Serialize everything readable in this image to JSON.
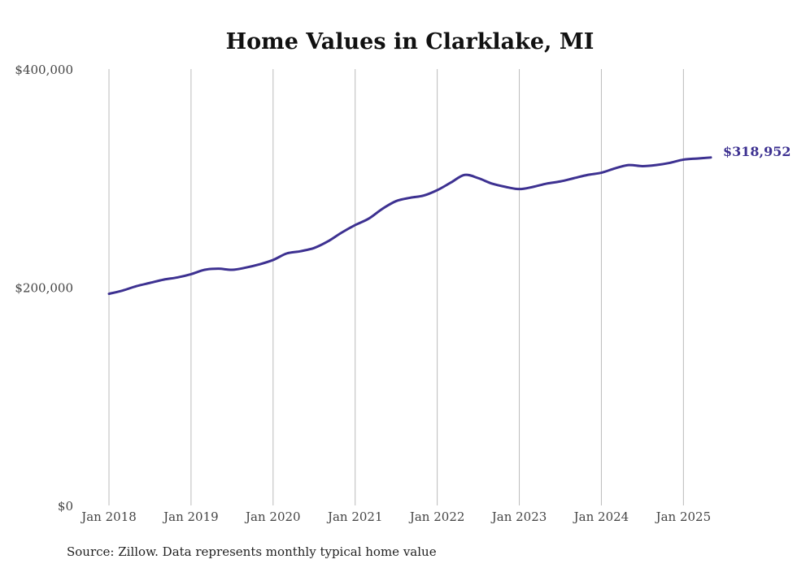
{
  "chart_data": {
    "type": "line",
    "title": "Home Values in Clarklake, MI",
    "xlabel": "",
    "ylabel": "",
    "y_tick_labels": [
      "$400,000",
      "$200,000",
      "$0"
    ],
    "y_tick_values": [
      400000,
      200000,
      0
    ],
    "ylim": [
      0,
      400000
    ],
    "x_tick_labels": [
      "Jan 2018",
      "Jan 2019",
      "Jan 2020",
      "Jan 2021",
      "Jan 2022",
      "Jan 2023",
      "Jan 2024",
      "Jan 2025"
    ],
    "x_tick_values": [
      "2018-01",
      "2019-01",
      "2020-01",
      "2021-01",
      "2022-01",
      "2023-01",
      "2024-01",
      "2025-01"
    ],
    "xlim": [
      "2018-01",
      "2025-05"
    ],
    "grid": "vertical",
    "line_color": "#3d3191",
    "end_label": "$318,952",
    "series": [
      {
        "x": [
          "2018-01",
          "2018-03",
          "2018-05",
          "2018-07",
          "2018-09",
          "2018-11",
          "2019-01",
          "2019-03",
          "2019-05",
          "2019-07",
          "2019-09",
          "2019-11",
          "2020-01",
          "2020-03",
          "2020-05",
          "2020-07",
          "2020-09",
          "2020-11",
          "2021-01",
          "2021-03",
          "2021-05",
          "2021-07",
          "2021-09",
          "2021-11",
          "2022-01",
          "2022-03",
          "2022-05",
          "2022-07",
          "2022-09",
          "2022-11",
          "2023-01",
          "2023-03",
          "2023-05",
          "2023-07",
          "2023-09",
          "2023-11",
          "2024-01",
          "2024-03",
          "2024-05",
          "2024-07",
          "2024-09",
          "2024-11",
          "2025-01",
          "2025-03",
          "2025-05"
        ],
        "values": [
          194000,
          197000,
          201000,
          204000,
          207000,
          209000,
          212000,
          216000,
          217000,
          216000,
          218000,
          221000,
          225000,
          231000,
          233000,
          236000,
          242000,
          250000,
          257000,
          263000,
          272000,
          279000,
          282000,
          284000,
          289000,
          296000,
          303000,
          300000,
          295000,
          292000,
          290000,
          292000,
          295000,
          297000,
          300000,
          303000,
          305000,
          309000,
          312000,
          311000,
          312000,
          314000,
          317000,
          318000,
          318952
        ]
      }
    ]
  },
  "footer": {
    "source": "Source: Zillow. Data represents monthly typical home value"
  }
}
